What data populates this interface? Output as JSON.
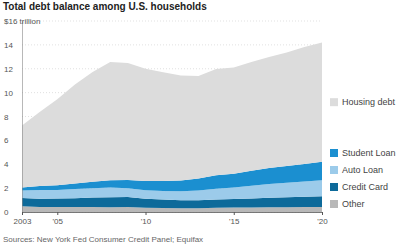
{
  "chart_data": {
    "type": "area",
    "stacked": true,
    "title": "Total debt balance among U.S. households",
    "source": "Sources: New York Fed Consumer Credit Panel; Equifax",
    "x": [
      2003,
      2004,
      2005,
      2006,
      2007,
      2008,
      2009,
      2010,
      2011,
      2012,
      2013,
      2014,
      2015,
      2016,
      2017,
      2018,
      2019,
      2020
    ],
    "xlim": [
      2003,
      2020
    ],
    "xticks": [
      2003,
      {
        "value": 2005,
        "label": "'05"
      },
      {
        "value": 2010,
        "label": "'10"
      },
      {
        "value": 2015,
        "label": "'15"
      },
      {
        "value": 2020,
        "label": "'20"
      }
    ],
    "ylim": [
      0,
      16
    ],
    "yticks": [
      0,
      2,
      4,
      6,
      8,
      10,
      12,
      14,
      {
        "value": 16,
        "label": "$16 trillion"
      }
    ],
    "grid": true,
    "legend": "right",
    "series": [
      {
        "name": "Housing debt",
        "color": "#dcdcdc",
        "values": [
          5.2,
          6.2,
          7.2,
          8.3,
          9.2,
          9.9,
          9.8,
          9.4,
          9.1,
          8.8,
          8.6,
          8.9,
          8.9,
          9.1,
          9.3,
          9.5,
          9.8,
          10.0
        ]
      },
      {
        "name": "Student Loan",
        "color": "#1b8fd0",
        "values": [
          0.24,
          0.33,
          0.39,
          0.45,
          0.53,
          0.61,
          0.69,
          0.76,
          0.85,
          0.9,
          1.0,
          1.12,
          1.16,
          1.26,
          1.34,
          1.41,
          1.48,
          1.54
        ]
      },
      {
        "name": "Auto Loan",
        "color": "#9ccbea",
        "values": [
          0.64,
          0.72,
          0.72,
          0.77,
          0.79,
          0.81,
          0.74,
          0.71,
          0.71,
          0.75,
          0.81,
          0.9,
          0.97,
          1.07,
          1.16,
          1.22,
          1.27,
          1.35
        ]
      },
      {
        "name": "Credit Card",
        "color": "#0d6a9a",
        "values": [
          0.69,
          0.7,
          0.71,
          0.74,
          0.8,
          0.84,
          0.84,
          0.76,
          0.71,
          0.68,
          0.68,
          0.7,
          0.71,
          0.75,
          0.8,
          0.83,
          0.87,
          0.89
        ]
      },
      {
        "name": "Other",
        "color": "#b8b8b8",
        "values": [
          0.48,
          0.42,
          0.42,
          0.42,
          0.41,
          0.4,
          0.41,
          0.36,
          0.33,
          0.31,
          0.31,
          0.35,
          0.37,
          0.38,
          0.39,
          0.4,
          0.41,
          0.42
        ]
      }
    ]
  }
}
